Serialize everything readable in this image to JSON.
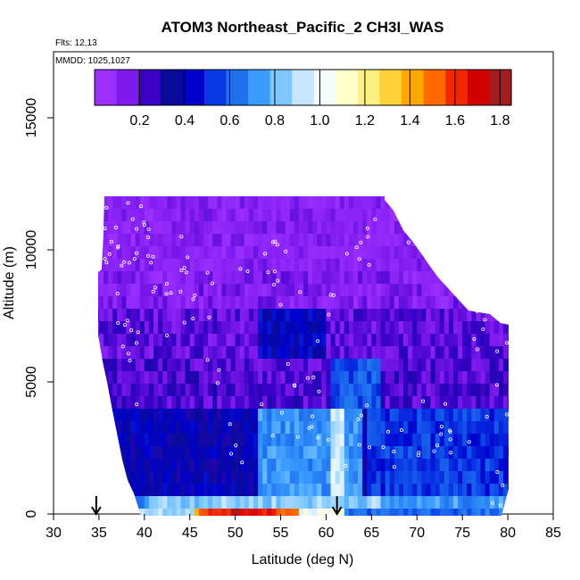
{
  "chart_data": {
    "type": "heatmap",
    "title": "ATOM3 Northeast_Pacific_2 CH3I_WAS",
    "flights": "Flts: 12,13",
    "mmdd": "MMDD: 1025,1027",
    "xlabel": "Latitude (deg N)",
    "ylabel": "Altitude (m)",
    "xlim": [
      30,
      85
    ],
    "ylim": [
      0,
      17500
    ],
    "x_ticks": [
      "30",
      "35",
      "40",
      "45",
      "50",
      "55",
      "60",
      "65",
      "70",
      "75",
      "80",
      "85"
    ],
    "y_ticks": [
      "0",
      "5000",
      "10000",
      "15000"
    ],
    "colorbar": {
      "range": [
        0,
        1.85
      ],
      "ticks": [
        "0.2",
        "0.4",
        "0.6",
        "0.8",
        "1.0",
        "1.2",
        "1.4",
        "1.6",
        "1.8"
      ],
      "colors": [
        "#9b30ff",
        "#7f1aee",
        "#3a00c8",
        "#0a0a9a",
        "#0000cc",
        "#0a3ae6",
        "#1e70ee",
        "#3a9cff",
        "#7ec8ff",
        "#c6e6ff",
        "#f4fbff",
        "#ffffc8",
        "#fff080",
        "#ffd23a",
        "#ffa800",
        "#ff6a00",
        "#f02800",
        "#d40000",
        "#a41c1c"
      ]
    },
    "markers": {
      "symbol": "arrow-down",
      "x": [
        34.7,
        61.2
      ]
    },
    "grid": false,
    "legend": "colorbar-top"
  }
}
